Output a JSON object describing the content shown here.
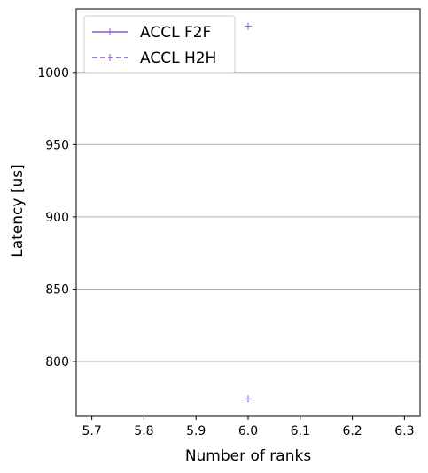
{
  "chart_data": {
    "type": "scatter",
    "title": "",
    "xlabel": "Number of ranks",
    "ylabel": "Latency [us]",
    "xlim": [
      5.67,
      6.33
    ],
    "ylim": [
      762,
      1044
    ],
    "xticks": [
      5.7,
      5.8,
      5.9,
      6.0,
      6.1,
      6.2,
      6.3
    ],
    "xtick_labels": [
      "5.7",
      "5.8",
      "5.9",
      "6.0",
      "6.1",
      "6.2",
      "6.3"
    ],
    "yticks": [
      800,
      850,
      900,
      950,
      1000
    ],
    "ytick_labels": [
      "800",
      "850",
      "900",
      "950",
      "1000"
    ],
    "grid": "horizontal",
    "legend_position": "top-left",
    "series": [
      {
        "name": "ACCL F2F",
        "line_style": "solid",
        "marker": "+",
        "color": "#8a5bd6",
        "x": [
          6.0
        ],
        "y": [
          774
        ]
      },
      {
        "name": "ACCL H2H",
        "line_style": "dashed",
        "marker": "+",
        "color": "#8a5bd6",
        "x": [
          6.0
        ],
        "y": [
          1032
        ]
      }
    ]
  }
}
